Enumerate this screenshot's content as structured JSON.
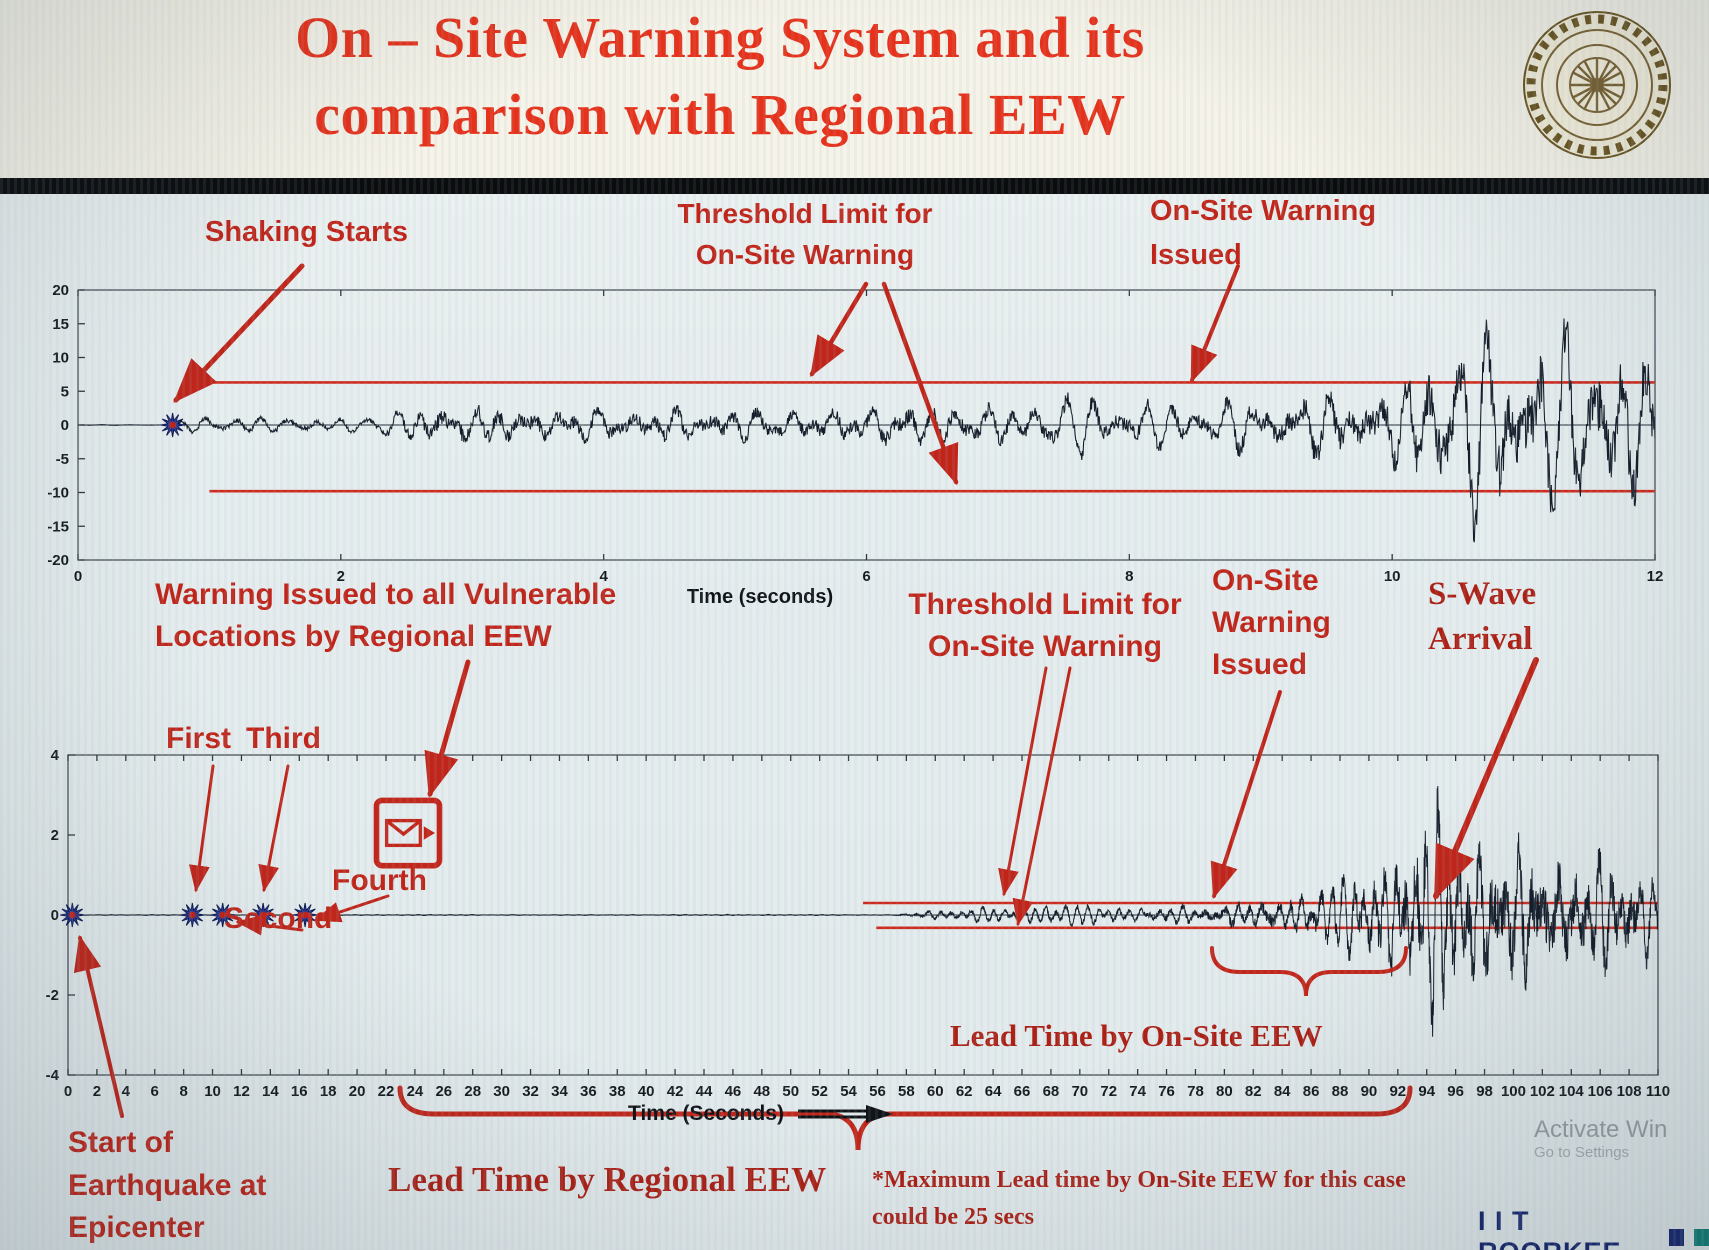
{
  "header": {
    "title_line1": "On – Site Warning System and its",
    "title_line2": "comparison with Regional EEW"
  },
  "annotations": {
    "shaking_starts": "Shaking Starts",
    "threshold_top_line1": "Threshold Limit for",
    "threshold_top_line2": "On-Site Warning",
    "onsite_issued_top_line1": "On-Site Warning",
    "onsite_issued_top_line2": "Issued",
    "regional_warning_line1": "Warning Issued to all Vulnerable",
    "regional_warning_line2": "Locations by Regional EEW",
    "p_first": "First",
    "p_second": "Second",
    "p_third": "Third",
    "p_fourth": "Fourth",
    "threshold_bottom_line1": "Threshold Limit for",
    "threshold_bottom_line2": "On-Site Warning",
    "onsite_issued_bottom_line1": "On-Site",
    "onsite_issued_bottom_line2": "Warning",
    "onsite_issued_bottom_line3": "Issued",
    "swave_line1": "S-Wave",
    "swave_line2": "Arrival",
    "lead_time_onsite": "Lead Time by On-Site EEW",
    "lead_time_regional": "Lead Time by Regional EEW",
    "note_line1": "*Maximum Lead time by On-Site EEW for this case",
    "note_line2": "could be 25 secs",
    "start_line1": "Start of",
    "start_line2": "Earthquake at",
    "start_line3": "Epicenter"
  },
  "footer": {
    "brand": "I I T ROORKEE",
    "watermark_line1": "Activate Win",
    "watermark_line2": "Go to Settings"
  },
  "colors": {
    "title_red": "#e7321b",
    "annotation_red": "#c1251a",
    "threshold_red": "#cf2a1d",
    "waveform_dark": "#141d29",
    "star_blue": "#2e3ea6",
    "brand_navy": "#16256e",
    "brand_teal": "#0e7d74"
  },
  "chart_data": [
    {
      "type": "line",
      "title": "",
      "description": "On-site single-station accelerogram with warning threshold",
      "xlabel": "Time (seconds)",
      "ylabel": "",
      "xlim": [
        0,
        12
      ],
      "xticks": [
        0,
        2,
        4,
        6,
        8,
        10,
        12
      ],
      "ylim": [
        -20,
        20
      ],
      "yticks": [
        20,
        15,
        10,
        5,
        0,
        -5,
        -10,
        -15,
        -20
      ],
      "grid": false,
      "legend": "none",
      "threshold_upper": 6.3,
      "threshold_lower": -9.8,
      "threshold_x_start": 0.9,
      "warning_crossing_x": 9.0,
      "events": [
        {
          "x": 0.72,
          "label": "Shaking Starts"
        }
      ],
      "freq_range": [
        2.5,
        7.0
      ],
      "envelope": [
        [
          0,
          0.05
        ],
        [
          0.7,
          0.05
        ],
        [
          0.9,
          1.3
        ],
        [
          2.2,
          1.0
        ],
        [
          2.6,
          3.6
        ],
        [
          3.0,
          4.4
        ],
        [
          3.6,
          3.2
        ],
        [
          4.6,
          3.5
        ],
        [
          5.4,
          3.0
        ],
        [
          6.2,
          4.6
        ],
        [
          7.0,
          3.4
        ],
        [
          7.8,
          4.2
        ],
        [
          8.4,
          3.6
        ],
        [
          9.0,
          4.4
        ],
        [
          9.5,
          6.5
        ],
        [
          10.0,
          8.0
        ],
        [
          10.4,
          12.0
        ],
        [
          10.9,
          15.5
        ],
        [
          11.4,
          13.0
        ],
        [
          11.8,
          14.5
        ],
        [
          12,
          11.0
        ]
      ]
    },
    {
      "type": "line",
      "title": "",
      "description": "Seismogram at vulnerable location comparing Regional EEW and On-Site warning lead times",
      "xlabel": "Time (Seconds)",
      "ylabel": "",
      "xlim": [
        0,
        110
      ],
      "xticks": [
        0,
        2,
        4,
        6,
        8,
        10,
        12,
        14,
        16,
        18,
        20,
        22,
        24,
        26,
        28,
        30,
        32,
        34,
        36,
        38,
        40,
        42,
        44,
        46,
        48,
        50,
        52,
        54,
        56,
        58,
        60,
        62,
        64,
        66,
        68,
        70,
        72,
        74,
        76,
        78,
        80,
        82,
        84,
        86,
        88,
        90,
        92,
        94,
        96,
        98,
        100,
        102,
        104,
        106,
        108,
        110
      ],
      "ylim": [
        -4,
        4
      ],
      "yticks": [
        4,
        2,
        0,
        -2,
        -4
      ],
      "grid": false,
      "legend": "none",
      "threshold_upper": 0.3,
      "threshold_lower": -0.32,
      "threshold_x_start": 55,
      "regional_warning_issue_x": 23.8,
      "onsite_warning_issue_x": 80,
      "s_wave_arrival_x": 93,
      "lead_time_onsite_span": [
        80,
        92.5
      ],
      "lead_time_regional_span": [
        24,
        92.5
      ],
      "max_onsite_lead_time_note_secs": 25,
      "events": [
        {
          "x": 0.3,
          "label": "Start of Earthquake at Epicenter"
        },
        {
          "x": 8.6,
          "label": "First"
        },
        {
          "x": 10.7,
          "label": "Second"
        },
        {
          "x": 13.5,
          "label": "Third"
        },
        {
          "x": 16.4,
          "label": "Fourth"
        }
      ],
      "freq_range": [
        0.7,
        2.2
      ],
      "envelope": [
        [
          0,
          0.012
        ],
        [
          57,
          0.012
        ],
        [
          59,
          0.1
        ],
        [
          62,
          0.18
        ],
        [
          66,
          0.22
        ],
        [
          70,
          0.24
        ],
        [
          74,
          0.22
        ],
        [
          78,
          0.3
        ],
        [
          80,
          0.38
        ],
        [
          83,
          0.5
        ],
        [
          86,
          0.7
        ],
        [
          88,
          0.95
        ],
        [
          90,
          1.3
        ],
        [
          92,
          1.8
        ],
        [
          93,
          2.5
        ],
        [
          95,
          2.9
        ],
        [
          97,
          2.7
        ],
        [
          99,
          2.4
        ],
        [
          101,
          2.5
        ],
        [
          103,
          2.1
        ],
        [
          105,
          1.9
        ],
        [
          107,
          1.7
        ],
        [
          109,
          1.5
        ],
        [
          110,
          1.4
        ]
      ]
    }
  ]
}
